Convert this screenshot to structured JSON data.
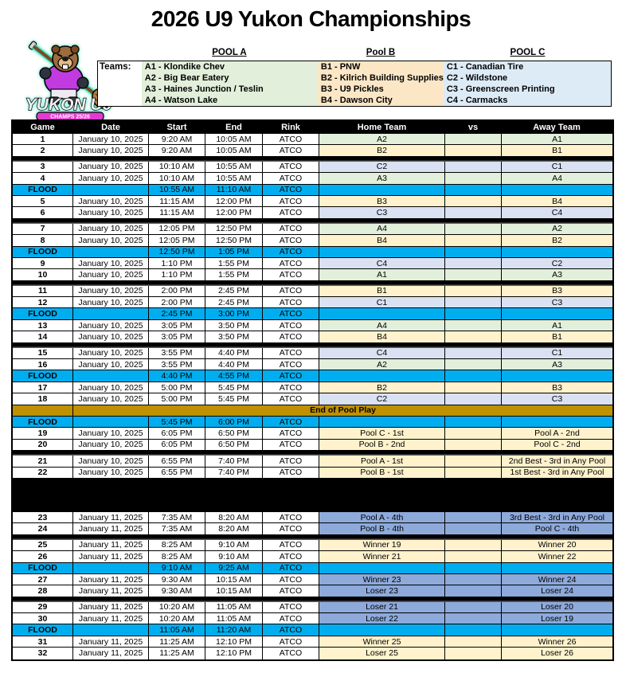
{
  "title": "2026 U9 Yukon Championships",
  "logo": {
    "line1": "YUKON U9",
    "line2": "CHAMPS 25/26"
  },
  "teams_label": "Teams:",
  "palette": {
    "green": "#E2EFDA",
    "cream": "#FFF2CC",
    "lavender": "#D9E1F2",
    "periwinkle": "#8EAADB",
    "flood_blue": "#00AEEF",
    "banner_gold": "#BF9000",
    "pool_a_box": "#E2EFDA",
    "pool_b_box": "#FBE7C6",
    "pool_c_box": "#DDEBF7",
    "header_bg": "#000000"
  },
  "pools": [
    {
      "name": "POOL A",
      "color": "#E2EFDA",
      "teams": [
        "A1 - Klondike Chev",
        "A2 - Big Bear Eatery",
        "A3 - Haines Junction / Teslin",
        "A4 - Watson Lake"
      ]
    },
    {
      "name": "Pool B",
      "color": "#FBE7C6",
      "teams": [
        "B1 - PNW",
        "B2 - Kilrich Building Supplies",
        "B3 - U9 Pickles",
        "B4 - Dawson City"
      ]
    },
    {
      "name": "POOL C",
      "color": "#DDEBF7",
      "teams": [
        "C1 - Canadian Tire",
        "C2 - Wildstone",
        "C3 - Greenscreen Printing",
        "C4 - Carmacks"
      ]
    }
  ],
  "schedule": {
    "headers": [
      "Game",
      "Date",
      "Start",
      "End",
      "Rink",
      "Home Team",
      "vs",
      "Away Team"
    ],
    "rows": [
      {
        "type": "game",
        "game": "1",
        "date": "January 10, 2025",
        "start": "9:20 AM",
        "end": "10:05 AM",
        "rink": "ATCO",
        "home": "A2",
        "away": "A1",
        "color": "green"
      },
      {
        "type": "game",
        "game": "2",
        "date": "January 10, 2025",
        "start": "9:20 AM",
        "end": "10:05 AM",
        "rink": "ATCO",
        "home": "B2",
        "away": "B1",
        "color": "cream"
      },
      {
        "type": "separator"
      },
      {
        "type": "game",
        "game": "3",
        "date": "January 10, 2025",
        "start": "10:10 AM",
        "end": "10:55 AM",
        "rink": "ATCO",
        "home": "C2",
        "away": "C1",
        "color": "lavender"
      },
      {
        "type": "game",
        "game": "4",
        "date": "January 10, 2025",
        "start": "10:10 AM",
        "end": "10:55 AM",
        "rink": "ATCO",
        "home": "A3",
        "away": "A4",
        "color": "green"
      },
      {
        "type": "flood",
        "label": "FLOOD",
        "start": "10:55 AM",
        "end": "11:10 AM",
        "rink": "ATCO"
      },
      {
        "type": "game",
        "game": "5",
        "date": "January 10, 2025",
        "start": "11:15 AM",
        "end": "12:00 PM",
        "rink": "ATCO",
        "home": "B3",
        "away": "B4",
        "color": "cream"
      },
      {
        "type": "game",
        "game": "6",
        "date": "January 10, 2025",
        "start": "11:15 AM",
        "end": "12:00 PM",
        "rink": "ATCO",
        "home": "C3",
        "away": "C4",
        "color": "lavender"
      },
      {
        "type": "separator"
      },
      {
        "type": "game",
        "game": "7",
        "date": "January 10, 2025",
        "start": "12:05 PM",
        "end": "12:50 PM",
        "rink": "ATCO",
        "home": "A4",
        "away": "A2",
        "color": "green"
      },
      {
        "type": "game",
        "game": "8",
        "date": "January 10, 2025",
        "start": "12:05 PM",
        "end": "12:50 PM",
        "rink": "ATCO",
        "home": "B4",
        "away": "B2",
        "color": "cream"
      },
      {
        "type": "flood",
        "label": "FLOOD",
        "start": "12:50 PM",
        "end": "1:05 PM",
        "rink": "ATCO"
      },
      {
        "type": "game",
        "game": "9",
        "date": "January 10, 2025",
        "start": "1:10 PM",
        "end": "1:55 PM",
        "rink": "ATCO",
        "home": "C4",
        "away": "C2",
        "color": "lavender"
      },
      {
        "type": "game",
        "game": "10",
        "date": "January 10, 2025",
        "start": "1:10 PM",
        "end": "1:55 PM",
        "rink": "ATCO",
        "home": "A1",
        "away": "A3",
        "color": "green"
      },
      {
        "type": "separator"
      },
      {
        "type": "game",
        "game": "11",
        "date": "January 10, 2025",
        "start": "2:00 PM",
        "end": "2:45 PM",
        "rink": "ATCO",
        "home": "B1",
        "away": "B3",
        "color": "cream"
      },
      {
        "type": "game",
        "game": "12",
        "date": "January 10, 2025",
        "start": "2:00 PM",
        "end": "2:45 PM",
        "rink": "ATCO",
        "home": "C1",
        "away": "C3",
        "color": "lavender"
      },
      {
        "type": "flood",
        "label": "FLOOD",
        "start": "2:45 PM",
        "end": "3:00 PM",
        "rink": "ATCO"
      },
      {
        "type": "game",
        "game": "13",
        "date": "January 10, 2025",
        "start": "3:05 PM",
        "end": "3:50 PM",
        "rink": "ATCO",
        "home": "A4",
        "away": "A1",
        "color": "green"
      },
      {
        "type": "game",
        "game": "14",
        "date": "January 10, 2025",
        "start": "3:05 PM",
        "end": "3:50 PM",
        "rink": "ATCO",
        "home": "B4",
        "away": "B1",
        "color": "cream"
      },
      {
        "type": "separator"
      },
      {
        "type": "game",
        "game": "15",
        "date": "January 10, 2025",
        "start": "3:55 PM",
        "end": "4:40 PM",
        "rink": "ATCO",
        "home": "C4",
        "away": "C1",
        "color": "lavender"
      },
      {
        "type": "game",
        "game": "16",
        "date": "January 10, 2025",
        "start": "3:55 PM",
        "end": "4:40 PM",
        "rink": "ATCO",
        "home": "A2",
        "away": "A3",
        "color": "green"
      },
      {
        "type": "flood",
        "label": "FLOOD",
        "start": "4:40 PM",
        "end": "4:55 PM",
        "rink": "ATCO"
      },
      {
        "type": "game",
        "game": "17",
        "date": "January 10, 2025",
        "start": "5:00 PM",
        "end": "5:45 PM",
        "rink": "ATCO",
        "home": "B2",
        "away": "B3",
        "color": "cream"
      },
      {
        "type": "game",
        "game": "18",
        "date": "January 10, 2025",
        "start": "5:00 PM",
        "end": "5:45 PM",
        "rink": "ATCO",
        "home": "C2",
        "away": "C3",
        "color": "lavender"
      },
      {
        "type": "banner",
        "label": "End of Pool Play"
      },
      {
        "type": "flood",
        "label": "FLOOD",
        "start": "5:45 PM",
        "end": "6:00 PM",
        "rink": "ATCO"
      },
      {
        "type": "game",
        "game": "19",
        "date": "January 10, 2025",
        "start": "6:05 PM",
        "end": "6:50 PM",
        "rink": "ATCO",
        "home": "Pool C - 1st",
        "away": "Pool A - 2nd",
        "color": "cream"
      },
      {
        "type": "game",
        "game": "20",
        "date": "January 10, 2025",
        "start": "6:05 PM",
        "end": "6:50 PM",
        "rink": "ATCO",
        "home": "Pool B - 2nd",
        "away": "Pool C - 2nd",
        "color": "cream"
      },
      {
        "type": "separator"
      },
      {
        "type": "game",
        "game": "21",
        "date": "January 10, 2025",
        "start": "6:55 PM",
        "end": "7:40 PM",
        "rink": "ATCO",
        "home": "Pool A - 1st",
        "away": "2nd Best - 3rd in Any Pool",
        "color": "cream"
      },
      {
        "type": "game",
        "game": "22",
        "date": "January 10, 2025",
        "start": "6:55 PM",
        "end": "7:40 PM",
        "rink": "ATCO",
        "home": "Pool B - 1st",
        "away": "1st Best - 3rd in Any Pool",
        "color": "cream"
      },
      {
        "type": "day-break"
      },
      {
        "type": "game",
        "game": "23",
        "date": "January 11, 2025",
        "start": "7:35 AM",
        "end": "8:20 AM",
        "rink": "ATCO",
        "home": "Pool A - 4th",
        "away": "3rd Best - 3rd in Any Pool",
        "color": "periwinkle"
      },
      {
        "type": "game",
        "game": "24",
        "date": "January 11, 2025",
        "start": "7:35 AM",
        "end": "8:20 AM",
        "rink": "ATCO",
        "home": "Pool B - 4th",
        "away": "Pool C - 4th",
        "color": "periwinkle"
      },
      {
        "type": "separator"
      },
      {
        "type": "game",
        "game": "25",
        "date": "January 11, 2025",
        "start": "8:25 AM",
        "end": "9:10 AM",
        "rink": "ATCO",
        "home": "Winner 19",
        "away": "Winner 20",
        "color": "cream"
      },
      {
        "type": "game",
        "game": "26",
        "date": "January 11, 2025",
        "start": "8:25 AM",
        "end": "9:10 AM",
        "rink": "ATCO",
        "home": "Winner 21",
        "away": "Winner 22",
        "color": "cream"
      },
      {
        "type": "flood",
        "label": "FLOOD",
        "start": "9:10 AM",
        "end": "9:25 AM",
        "rink": "ATCO"
      },
      {
        "type": "game",
        "game": "27",
        "date": "January 11, 2025",
        "start": "9:30 AM",
        "end": "10:15 AM",
        "rink": "ATCO",
        "home": "Winner 23",
        "away": "Winner 24",
        "color": "periwinkle"
      },
      {
        "type": "game",
        "game": "28",
        "date": "January 11, 2025",
        "start": "9:30 AM",
        "end": "10:15 AM",
        "rink": "ATCO",
        "home": "Loser 23",
        "away": "Loser 24",
        "color": "periwinkle"
      },
      {
        "type": "separator"
      },
      {
        "type": "game",
        "game": "29",
        "date": "January 11, 2025",
        "start": "10:20 AM",
        "end": "11:05 AM",
        "rink": "ATCO",
        "home": "Loser 21",
        "away": "Loser 20",
        "color": "periwinkle"
      },
      {
        "type": "game",
        "game": "30",
        "date": "January 11, 2025",
        "start": "10:20 AM",
        "end": "11:05 AM",
        "rink": "ATCO",
        "home": "Loser 22",
        "away": "Loser 19",
        "color": "periwinkle"
      },
      {
        "type": "flood",
        "label": "FLOOD",
        "start": "11:05 AM",
        "end": "11:20 AM",
        "rink": "ATCO"
      },
      {
        "type": "game",
        "game": "31",
        "date": "January 11, 2025",
        "start": "11:25 AM",
        "end": "12:10 PM",
        "rink": "ATCO",
        "home": "Winner 25",
        "away": "Winner 26",
        "color": "cream"
      },
      {
        "type": "game",
        "game": "32",
        "date": "January 11, 2025",
        "start": "11:25 AM",
        "end": "12:10 PM",
        "rink": "ATCO",
        "home": "Loser 25",
        "away": "Loser 26",
        "color": "cream"
      }
    ]
  }
}
